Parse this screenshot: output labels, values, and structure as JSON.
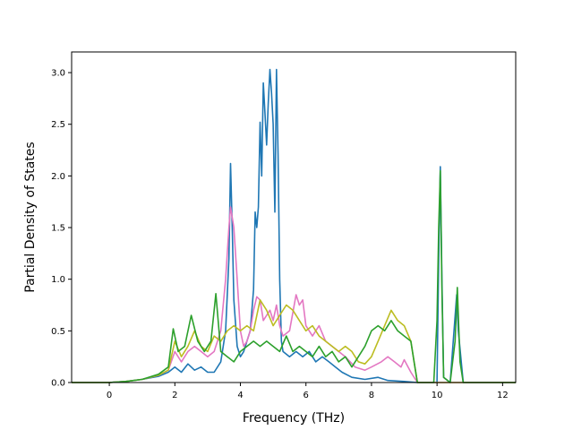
{
  "chart_data": {
    "type": "line",
    "title": "",
    "xlabel": "Frequency (THz)",
    "ylabel": "Partial Density of States",
    "xlim": [
      -1.15,
      12.4
    ],
    "ylim": [
      0.0,
      3.2
    ],
    "xticks": [
      0,
      2,
      4,
      6,
      8,
      10,
      12
    ],
    "yticks": [
      0.0,
      0.5,
      1.0,
      1.5,
      2.0,
      2.5,
      3.0
    ],
    "xtick_labels": [
      "0",
      "2",
      "4",
      "6",
      "8",
      "10",
      "12"
    ],
    "ytick_labels": [
      "0.0",
      "0.5",
      "1.0",
      "1.5",
      "2.0",
      "2.5",
      "3.0"
    ],
    "grid": false,
    "legend": false,
    "series": [
      {
        "color": "#1f77b4",
        "points": [
          [
            -1.15,
            0
          ],
          [
            0,
            0
          ],
          [
            0.5,
            0.01
          ],
          [
            1.0,
            0.03
          ],
          [
            1.5,
            0.06
          ],
          [
            1.8,
            0.1
          ],
          [
            2.0,
            0.15
          ],
          [
            2.2,
            0.1
          ],
          [
            2.4,
            0.18
          ],
          [
            2.6,
            0.12
          ],
          [
            2.8,
            0.15
          ],
          [
            3.0,
            0.1
          ],
          [
            3.2,
            0.1
          ],
          [
            3.4,
            0.2
          ],
          [
            3.55,
            0.5
          ],
          [
            3.65,
            1.2
          ],
          [
            3.7,
            2.12
          ],
          [
            3.75,
            1.5
          ],
          [
            3.8,
            0.8
          ],
          [
            3.9,
            0.35
          ],
          [
            4.0,
            0.25
          ],
          [
            4.1,
            0.3
          ],
          [
            4.2,
            0.4
          ],
          [
            4.3,
            0.5
          ],
          [
            4.4,
            0.9
          ],
          [
            4.45,
            1.65
          ],
          [
            4.5,
            1.5
          ],
          [
            4.55,
            1.7
          ],
          [
            4.6,
            2.52
          ],
          [
            4.65,
            2.0
          ],
          [
            4.7,
            2.9
          ],
          [
            4.75,
            2.6
          ],
          [
            4.8,
            2.3
          ],
          [
            4.85,
            2.7
          ],
          [
            4.9,
            3.03
          ],
          [
            4.95,
            2.8
          ],
          [
            5.0,
            2.5
          ],
          [
            5.05,
            1.65
          ],
          [
            5.1,
            3.03
          ],
          [
            5.15,
            2.2
          ],
          [
            5.2,
            1.0
          ],
          [
            5.25,
            0.4
          ],
          [
            5.3,
            0.3
          ],
          [
            5.5,
            0.25
          ],
          [
            5.7,
            0.3
          ],
          [
            5.9,
            0.25
          ],
          [
            6.1,
            0.3
          ],
          [
            6.3,
            0.2
          ],
          [
            6.5,
            0.25
          ],
          [
            6.7,
            0.2
          ],
          [
            6.9,
            0.15
          ],
          [
            7.1,
            0.1
          ],
          [
            7.4,
            0.05
          ],
          [
            7.8,
            0.03
          ],
          [
            8.2,
            0.05
          ],
          [
            8.5,
            0.02
          ],
          [
            9.0,
            0.01
          ],
          [
            9.4,
            0
          ],
          [
            10.0,
            0
          ],
          [
            10.05,
            1.2
          ],
          [
            10.1,
            2.09
          ],
          [
            10.15,
            1.0
          ],
          [
            10.2,
            0.05
          ],
          [
            10.4,
            0
          ],
          [
            10.6,
            0.85
          ],
          [
            10.65,
            0.5
          ],
          [
            10.8,
            0
          ],
          [
            12.4,
            0
          ]
        ]
      },
      {
        "color": "#e377c2",
        "points": [
          [
            -1.15,
            0
          ],
          [
            0,
            0
          ],
          [
            0.5,
            0.01
          ],
          [
            1.0,
            0.03
          ],
          [
            1.5,
            0.07
          ],
          [
            1.8,
            0.12
          ],
          [
            2.0,
            0.3
          ],
          [
            2.2,
            0.2
          ],
          [
            2.4,
            0.3
          ],
          [
            2.6,
            0.35
          ],
          [
            2.8,
            0.3
          ],
          [
            3.0,
            0.25
          ],
          [
            3.2,
            0.3
          ],
          [
            3.4,
            0.5
          ],
          [
            3.55,
            1.0
          ],
          [
            3.65,
            1.5
          ],
          [
            3.7,
            1.7
          ],
          [
            3.8,
            1.5
          ],
          [
            3.9,
            1.0
          ],
          [
            4.0,
            0.5
          ],
          [
            4.1,
            0.35
          ],
          [
            4.2,
            0.4
          ],
          [
            4.3,
            0.5
          ],
          [
            4.4,
            0.7
          ],
          [
            4.5,
            0.83
          ],
          [
            4.6,
            0.8
          ],
          [
            4.7,
            0.6
          ],
          [
            4.8,
            0.65
          ],
          [
            4.9,
            0.7
          ],
          [
            5.0,
            0.6
          ],
          [
            5.1,
            0.75
          ],
          [
            5.2,
            0.55
          ],
          [
            5.3,
            0.45
          ],
          [
            5.5,
            0.5
          ],
          [
            5.7,
            0.85
          ],
          [
            5.8,
            0.75
          ],
          [
            5.9,
            0.8
          ],
          [
            6.0,
            0.55
          ],
          [
            6.2,
            0.45
          ],
          [
            6.4,
            0.55
          ],
          [
            6.6,
            0.4
          ],
          [
            6.8,
            0.35
          ],
          [
            7.0,
            0.3
          ],
          [
            7.2,
            0.25
          ],
          [
            7.5,
            0.15
          ],
          [
            7.8,
            0.12
          ],
          [
            8.0,
            0.15
          ],
          [
            8.3,
            0.2
          ],
          [
            8.5,
            0.25
          ],
          [
            8.7,
            0.2
          ],
          [
            8.9,
            0.15
          ],
          [
            9.0,
            0.22
          ],
          [
            9.2,
            0.1
          ],
          [
            9.4,
            0
          ],
          [
            12.4,
            0
          ]
        ]
      },
      {
        "color": "#bcbd22",
        "points": [
          [
            -1.15,
            0
          ],
          [
            0,
            0
          ],
          [
            0.5,
            0.01
          ],
          [
            1.0,
            0.03
          ],
          [
            1.5,
            0.07
          ],
          [
            1.8,
            0.12
          ],
          [
            2.0,
            0.4
          ],
          [
            2.2,
            0.25
          ],
          [
            2.4,
            0.35
          ],
          [
            2.6,
            0.5
          ],
          [
            2.8,
            0.35
          ],
          [
            3.0,
            0.3
          ],
          [
            3.2,
            0.45
          ],
          [
            3.4,
            0.4
          ],
          [
            3.6,
            0.5
          ],
          [
            3.8,
            0.55
          ],
          [
            4.0,
            0.5
          ],
          [
            4.2,
            0.55
          ],
          [
            4.4,
            0.5
          ],
          [
            4.6,
            0.8
          ],
          [
            4.8,
            0.7
          ],
          [
            5.0,
            0.55
          ],
          [
            5.2,
            0.65
          ],
          [
            5.4,
            0.75
          ],
          [
            5.6,
            0.7
          ],
          [
            5.8,
            0.6
          ],
          [
            6.0,
            0.5
          ],
          [
            6.2,
            0.55
          ],
          [
            6.4,
            0.45
          ],
          [
            6.6,
            0.4
          ],
          [
            6.8,
            0.35
          ],
          [
            7.0,
            0.3
          ],
          [
            7.2,
            0.35
          ],
          [
            7.4,
            0.3
          ],
          [
            7.6,
            0.2
          ],
          [
            7.8,
            0.18
          ],
          [
            8.0,
            0.25
          ],
          [
            8.2,
            0.4
          ],
          [
            8.4,
            0.55
          ],
          [
            8.6,
            0.7
          ],
          [
            8.8,
            0.6
          ],
          [
            9.0,
            0.55
          ],
          [
            9.2,
            0.4
          ],
          [
            9.3,
            0.2
          ],
          [
            9.4,
            0
          ],
          [
            12.4,
            0
          ]
        ]
      },
      {
        "color": "#2ca02c",
        "points": [
          [
            -1.15,
            0
          ],
          [
            0,
            0
          ],
          [
            0.5,
            0.01
          ],
          [
            1.0,
            0.03
          ],
          [
            1.5,
            0.08
          ],
          [
            1.8,
            0.15
          ],
          [
            1.95,
            0.52
          ],
          [
            2.1,
            0.3
          ],
          [
            2.3,
            0.35
          ],
          [
            2.5,
            0.65
          ],
          [
            2.7,
            0.4
          ],
          [
            2.9,
            0.3
          ],
          [
            3.1,
            0.4
          ],
          [
            3.25,
            0.86
          ],
          [
            3.4,
            0.3
          ],
          [
            3.6,
            0.25
          ],
          [
            3.8,
            0.2
          ],
          [
            4.0,
            0.3
          ],
          [
            4.2,
            0.35
          ],
          [
            4.4,
            0.4
          ],
          [
            4.6,
            0.35
          ],
          [
            4.8,
            0.4
          ],
          [
            5.0,
            0.35
          ],
          [
            5.2,
            0.3
          ],
          [
            5.4,
            0.45
          ],
          [
            5.6,
            0.3
          ],
          [
            5.8,
            0.35
          ],
          [
            6.0,
            0.3
          ],
          [
            6.2,
            0.25
          ],
          [
            6.4,
            0.35
          ],
          [
            6.6,
            0.25
          ],
          [
            6.8,
            0.3
          ],
          [
            7.0,
            0.2
          ],
          [
            7.2,
            0.25
          ],
          [
            7.4,
            0.15
          ],
          [
            7.6,
            0.25
          ],
          [
            7.8,
            0.35
          ],
          [
            8.0,
            0.5
          ],
          [
            8.2,
            0.55
          ],
          [
            8.4,
            0.5
          ],
          [
            8.6,
            0.6
          ],
          [
            8.8,
            0.5
          ],
          [
            9.0,
            0.45
          ],
          [
            9.2,
            0.4
          ],
          [
            9.3,
            0.2
          ],
          [
            9.4,
            0
          ],
          [
            9.9,
            0
          ],
          [
            10.0,
            0.6
          ],
          [
            10.05,
            1.5
          ],
          [
            10.1,
            2.05
          ],
          [
            10.15,
            0.9
          ],
          [
            10.2,
            0.05
          ],
          [
            10.4,
            0
          ],
          [
            10.55,
            0.4
          ],
          [
            10.62,
            0.92
          ],
          [
            10.7,
            0.2
          ],
          [
            10.8,
            0
          ],
          [
            12.4,
            0
          ]
        ]
      }
    ]
  }
}
